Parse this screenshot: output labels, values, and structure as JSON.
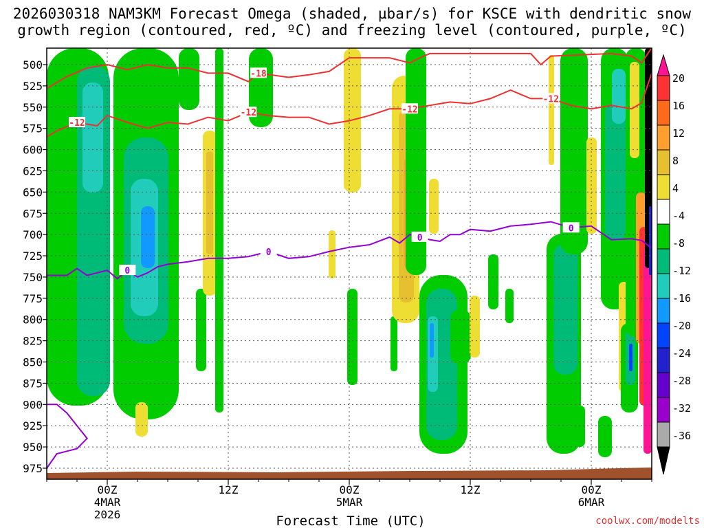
{
  "chart_data": {
    "type": "time-height cross section",
    "title_line1": "2026030318 NAM3KM Forecast Omega (shaded, µbar/s) for KSCE with dendritic snow",
    "title_line2": "growth region (contoured, red, ºC) and freezing level (contoured, purple, ºC)",
    "xlabel": "Forecast Time (UTC)",
    "credit": "coolwx.com/modelts",
    "ylim": [
      1000,
      487
    ],
    "y_ticks": [
      "500",
      "525",
      "550",
      "575",
      "600",
      "625",
      "650",
      "675",
      "700",
      "725",
      "750",
      "775",
      "800",
      "825",
      "850",
      "875",
      "900",
      "925",
      "950",
      "975"
    ],
    "x_ticks": [
      {
        "hour": 6,
        "lines": [
          "00Z",
          "4MAR",
          "2026"
        ]
      },
      {
        "hour": 18,
        "lines": [
          "12Z"
        ]
      },
      {
        "hour": 30,
        "lines": [
          "00Z",
          "5MAR"
        ]
      },
      {
        "hour": 42,
        "lines": [
          "12Z"
        ]
      },
      {
        "hour": 54,
        "lines": [
          "00Z",
          "6MAR"
        ]
      }
    ],
    "xlim": [
      0,
      60
    ],
    "colorbar": {
      "labels": [
        "20",
        "16",
        "12",
        "8",
        "4",
        "-4",
        "-8",
        "-12",
        "-16",
        "-20",
        "-24",
        "-28",
        "-32",
        "-36"
      ],
      "colors": [
        "#ff1493",
        "#ff3333",
        "#ff6a1a",
        "#ff9f2e",
        "#e6c02e",
        "#eedd33",
        "#ffffff",
        "#00cc00",
        "#00bb77",
        "#22ccbb",
        "#1199ff",
        "#0044ff",
        "#2222cc",
        "#6600cc",
        "#9900cc",
        "#aaaaaa",
        "#000000"
      ]
    },
    "series": [
      {
        "name": "dendritic growth -12C",
        "color": "#ee3030",
        "label": "-12",
        "points": [
          [
            0,
            585
          ],
          [
            1,
            578
          ],
          [
            3,
            568
          ],
          [
            5,
            572
          ],
          [
            6,
            560
          ],
          [
            8,
            568
          ],
          [
            10,
            575
          ],
          [
            12,
            568
          ],
          [
            14,
            570
          ],
          [
            16,
            562
          ],
          [
            18,
            566
          ],
          [
            20,
            556
          ],
          [
            22,
            560
          ],
          [
            24,
            562
          ],
          [
            26,
            562
          ],
          [
            28,
            570
          ],
          [
            30,
            566
          ],
          [
            32,
            560
          ],
          [
            34,
            552
          ],
          [
            36,
            552
          ],
          [
            38,
            548
          ],
          [
            40,
            544
          ],
          [
            42,
            546
          ],
          [
            44,
            540
          ],
          [
            46,
            530
          ],
          [
            48,
            540
          ],
          [
            50,
            540
          ],
          [
            52,
            548
          ],
          [
            54,
            552
          ],
          [
            56,
            548
          ],
          [
            58,
            552
          ],
          [
            59,
            545
          ],
          [
            60,
            510
          ]
        ]
      },
      {
        "name": "dendritic growth -18C",
        "color": "#ee3030",
        "label": "-18",
        "points": [
          [
            0,
            528
          ],
          [
            2,
            514
          ],
          [
            4,
            504
          ],
          [
            6,
            500
          ],
          [
            8,
            506
          ],
          [
            10,
            500
          ],
          [
            12,
            504
          ],
          [
            14,
            504
          ],
          [
            16,
            510
          ],
          [
            18,
            510
          ],
          [
            20,
            520
          ],
          [
            21,
            510
          ],
          [
            24,
            515
          ],
          [
            26,
            512
          ],
          [
            28,
            508
          ],
          [
            29,
            500
          ],
          [
            30,
            492
          ],
          [
            34,
            492
          ],
          [
            36,
            498
          ],
          [
            37,
            492
          ],
          [
            38,
            487
          ],
          [
            48,
            487
          ],
          [
            49,
            500
          ],
          [
            50,
            490
          ],
          [
            56,
            487
          ],
          [
            58,
            490
          ],
          [
            59,
            498
          ],
          [
            60,
            480
          ]
        ]
      },
      {
        "name": "freezing level 0C",
        "color": "#9400d3",
        "label": "0",
        "points": [
          [
            0,
            748
          ],
          [
            2,
            748
          ],
          [
            3,
            740
          ],
          [
            4,
            748
          ],
          [
            5,
            745
          ],
          [
            6,
            742
          ],
          [
            7,
            752
          ],
          [
            8,
            742
          ],
          [
            9,
            750
          ],
          [
            10,
            745
          ],
          [
            11,
            738
          ],
          [
            12,
            735
          ],
          [
            14,
            732
          ],
          [
            16,
            728
          ],
          [
            18,
            728
          ],
          [
            20,
            726
          ],
          [
            22,
            720
          ],
          [
            24,
            728
          ],
          [
            26,
            726
          ],
          [
            28,
            720
          ],
          [
            30,
            715
          ],
          [
            32,
            712
          ],
          [
            34,
            703
          ],
          [
            35,
            710
          ],
          [
            36,
            700
          ],
          [
            37,
            703
          ],
          [
            38,
            706
          ],
          [
            39,
            708
          ],
          [
            40,
            700
          ],
          [
            41,
            700
          ],
          [
            42,
            694
          ],
          [
            44,
            696
          ],
          [
            46,
            690
          ],
          [
            48,
            688
          ],
          [
            50,
            685
          ],
          [
            52,
            692
          ],
          [
            54,
            690
          ],
          [
            56,
            706
          ],
          [
            58,
            705
          ],
          [
            59,
            707
          ],
          [
            60,
            716
          ]
        ]
      },
      {
        "name": "freezing level 0C (surface)",
        "color": "#9400d3",
        "label": "",
        "points": [
          [
            0,
            900
          ],
          [
            1,
            900
          ],
          [
            2,
            910
          ],
          [
            3,
            925
          ],
          [
            4,
            940
          ],
          [
            3,
            952
          ],
          [
            2,
            955
          ],
          [
            1,
            958
          ],
          [
            0,
            975
          ]
        ]
      }
    ]
  }
}
